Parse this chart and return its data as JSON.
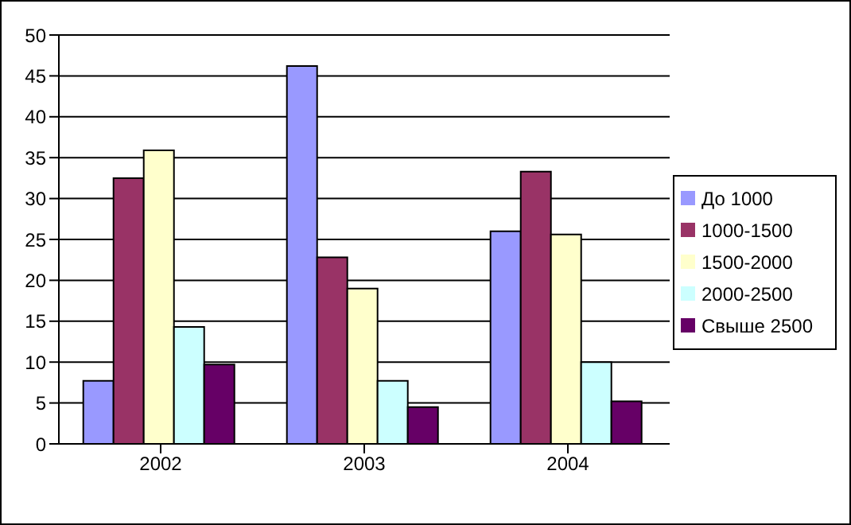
{
  "chart_data": {
    "type": "bar",
    "categories": [
      "2002",
      "2003",
      "2004"
    ],
    "series": [
      {
        "name": "До 1000",
        "color": "#9999ff",
        "values": [
          7.7,
          46.2,
          26.0
        ]
      },
      {
        "name": "1000-1500",
        "color": "#993366",
        "values": [
          32.5,
          22.8,
          33.3
        ]
      },
      {
        "name": "1500-2000",
        "color": "#ffffcc",
        "values": [
          35.9,
          19.0,
          25.6
        ]
      },
      {
        "name": "2000-2500",
        "color": "#ccffff",
        "values": [
          14.3,
          7.7,
          10.0
        ]
      },
      {
        "name": "Свыше 2500",
        "color": "#660066",
        "values": [
          9.7,
          4.5,
          5.2
        ]
      }
    ],
    "ylim": [
      0,
      50
    ],
    "yticks": [
      0,
      5,
      10,
      15,
      20,
      25,
      30,
      35,
      40,
      45,
      50
    ],
    "grid": "y",
    "legend": "right"
  }
}
